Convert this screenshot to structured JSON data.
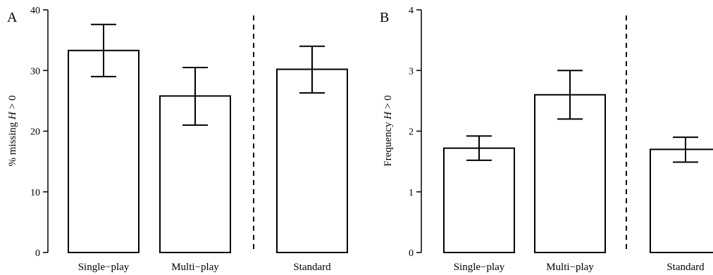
{
  "chart_data": [
    {
      "type": "bar",
      "panel_label": "A",
      "categories": [
        "Single−play",
        "Multi−play",
        "Standard"
      ],
      "values": [
        33.3,
        25.8,
        30.2
      ],
      "error_low": [
        29.0,
        21.0,
        26.3
      ],
      "error_high": [
        37.6,
        30.5,
        34.0
      ],
      "ylabel_prefix": "% missing ",
      "ylabel_var": "H",
      "ylabel_suffix": " > 0",
      "ylim": [
        0,
        40
      ],
      "yticks": [
        0,
        10,
        20,
        30,
        40
      ],
      "separator_after_index": 1,
      "grid": false
    },
    {
      "type": "bar",
      "panel_label": "B",
      "categories": [
        "Single−play",
        "Multi−play",
        "Standard"
      ],
      "values": [
        1.72,
        2.6,
        1.7
      ],
      "error_low": [
        1.52,
        2.2,
        1.49
      ],
      "error_high": [
        1.92,
        3.0,
        1.9
      ],
      "ylabel_prefix": "Frequency ",
      "ylabel_var": "H",
      "ylabel_suffix": " > 0",
      "ylim": [
        0,
        4
      ],
      "yticks": [
        0,
        1,
        2,
        3,
        4
      ],
      "separator_after_index": 1,
      "grid": false
    }
  ]
}
